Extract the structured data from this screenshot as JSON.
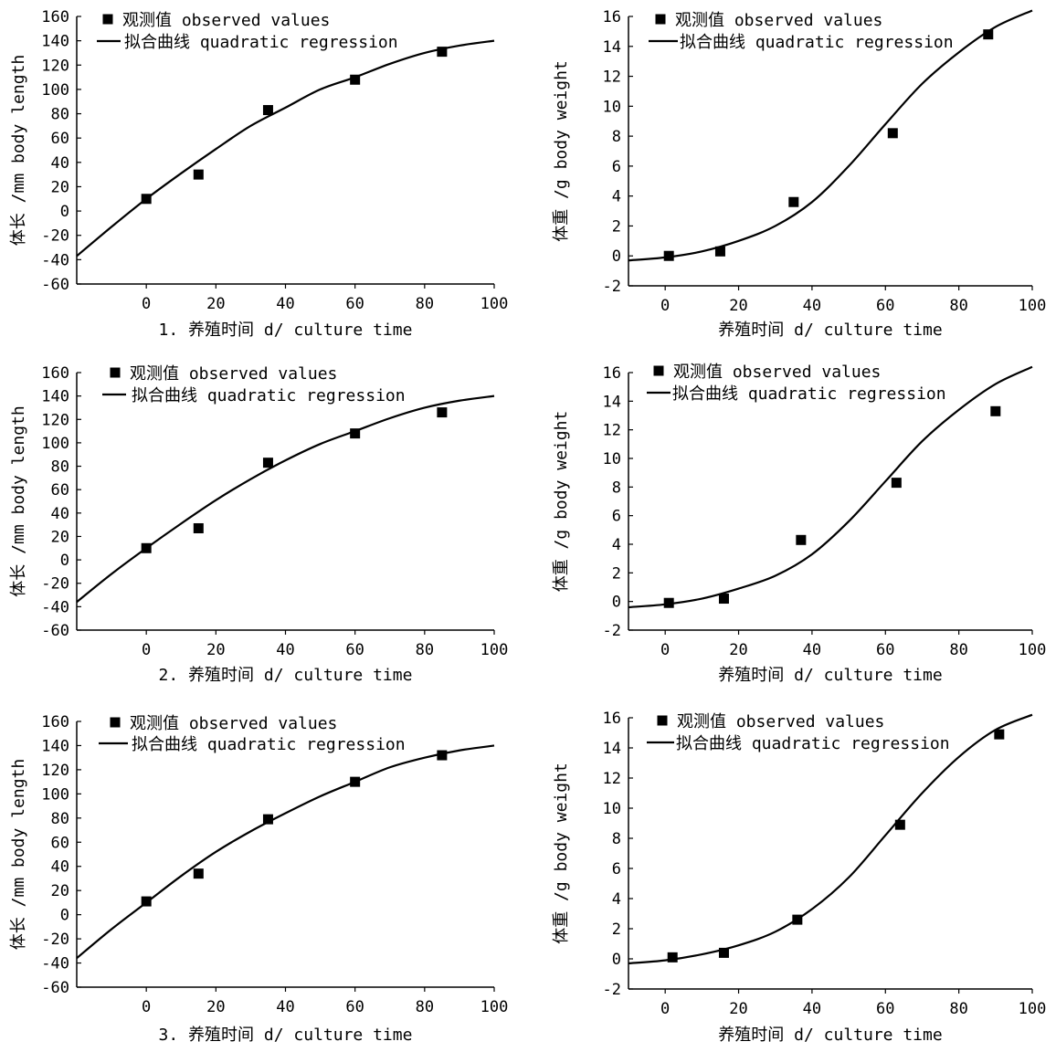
{
  "chart_data": [
    {
      "type": "scatter",
      "xlabel": "1. 养殖时间 d/ culture time",
      "ylabel": "体长 /mm body length",
      "xlim": [
        -20,
        100
      ],
      "ylim": [
        -60,
        160
      ],
      "xticks": [
        0,
        20,
        40,
        60,
        80,
        100
      ],
      "yticks": [
        -60,
        -40,
        -20,
        0,
        20,
        40,
        60,
        80,
        100,
        120,
        140,
        160
      ],
      "legend": {
        "position": "top-left",
        "observed": "观测值 observed values",
        "fit": "拟合曲线 quadratic regression"
      },
      "series": [
        {
          "name": "观测值 observed values",
          "kind": "points",
          "x": [
            0,
            15,
            35,
            60,
            85
          ],
          "y": [
            10,
            30,
            83,
            108,
            131
          ]
        },
        {
          "name": "拟合曲线 quadratic regression",
          "kind": "line",
          "x": [
            -20,
            -10,
            0,
            10,
            20,
            30,
            40,
            50,
            60,
            70,
            80,
            90,
            100
          ],
          "y": [
            -37,
            -13,
            10,
            31,
            51,
            70,
            85,
            100,
            110,
            121,
            130,
            136,
            140
          ]
        }
      ]
    },
    {
      "type": "scatter",
      "xlabel": "养殖时间 d/ culture time",
      "ylabel": "体重 /g body weight",
      "xlim": [
        -10,
        100
      ],
      "ylim": [
        -2,
        16
      ],
      "xticks": [
        0,
        20,
        40,
        60,
        80,
        100
      ],
      "yticks": [
        -2,
        0,
        2,
        4,
        6,
        8,
        10,
        12,
        14,
        16
      ],
      "legend": {
        "position": "top-left",
        "observed": "观测值 observed values",
        "fit": "拟合曲线 quadratic regression"
      },
      "series": [
        {
          "name": "观测值 observed values",
          "kind": "points",
          "x": [
            1,
            15,
            35,
            62,
            88
          ],
          "y": [
            0,
            0.3,
            3.6,
            8.2,
            14.8
          ]
        },
        {
          "name": "拟合曲线 quadratic regression",
          "kind": "line",
          "x": [
            -10,
            0,
            10,
            20,
            30,
            40,
            50,
            60,
            70,
            80,
            90,
            100
          ],
          "y": [
            -0.3,
            -0.1,
            0.3,
            1,
            2,
            3.6,
            6,
            8.8,
            11.5,
            13.6,
            15.3,
            16.4
          ]
        }
      ]
    },
    {
      "type": "scatter",
      "xlabel": "2. 养殖时间 d/ culture time",
      "ylabel": "体长 /mm body length",
      "xlim": [
        -20,
        100
      ],
      "ylim": [
        -60,
        160
      ],
      "xticks": [
        0,
        20,
        40,
        60,
        80,
        100
      ],
      "yticks": [
        -60,
        -40,
        -20,
        0,
        20,
        40,
        60,
        80,
        100,
        120,
        140,
        160
      ],
      "legend": {
        "position": "top-left",
        "observed": "观测值 observed values",
        "fit": "拟合曲线 quadratic regression"
      },
      "series": [
        {
          "name": "观测值 observed values",
          "kind": "points",
          "x": [
            0,
            15,
            35,
            60,
            85
          ],
          "y": [
            10,
            27,
            83,
            108,
            126
          ]
        },
        {
          "name": "拟合曲线 quadratic regression",
          "kind": "line",
          "x": [
            -20,
            -10,
            0,
            10,
            20,
            30,
            40,
            50,
            60,
            70,
            80,
            90,
            100
          ],
          "y": [
            -36,
            -12,
            10,
            31,
            51,
            69,
            85,
            99,
            110,
            121,
            130,
            136,
            140
          ]
        }
      ]
    },
    {
      "type": "scatter",
      "xlabel": "养殖时间 d/ culture time",
      "ylabel": "体重 /g body weight",
      "xlim": [
        -10,
        100
      ],
      "ylim": [
        -2,
        16
      ],
      "xticks": [
        0,
        20,
        40,
        60,
        80,
        100
      ],
      "yticks": [
        -2,
        0,
        2,
        4,
        6,
        8,
        10,
        12,
        14,
        16
      ],
      "legend": {
        "position": "top-left",
        "observed": "观测值 observed values",
        "fit": "拟合曲线 quadratic regression"
      },
      "series": [
        {
          "name": "观测值 observed values",
          "kind": "points",
          "x": [
            1,
            16,
            37,
            63,
            90
          ],
          "y": [
            -0.1,
            0.2,
            4.3,
            8.3,
            13.3
          ]
        },
        {
          "name": "拟合曲线 quadratic regression",
          "kind": "line",
          "x": [
            -10,
            0,
            10,
            20,
            30,
            40,
            50,
            60,
            70,
            80,
            90,
            100
          ],
          "y": [
            -0.4,
            -0.2,
            0.2,
            0.9,
            1.8,
            3.3,
            5.6,
            8.4,
            11.2,
            13.4,
            15.2,
            16.4
          ]
        }
      ]
    },
    {
      "type": "scatter",
      "xlabel": "3. 养殖时间 d/ culture time",
      "ylabel": "体长 /mm body length",
      "xlim": [
        -20,
        100
      ],
      "ylim": [
        -60,
        160
      ],
      "xticks": [
        0,
        20,
        40,
        60,
        80,
        100
      ],
      "yticks": [
        -60,
        -40,
        -20,
        0,
        20,
        40,
        60,
        80,
        100,
        120,
        140,
        160
      ],
      "legend": {
        "position": "top-left",
        "observed": "观测值 observed values",
        "fit": "拟合曲线 quadratic regression"
      },
      "series": [
        {
          "name": "观测值 observed values",
          "kind": "points",
          "x": [
            0,
            15,
            35,
            60,
            85
          ],
          "y": [
            11,
            34,
            79,
            110,
            132
          ]
        },
        {
          "name": "拟合曲线 quadratic regression",
          "kind": "line",
          "x": [
            -20,
            -10,
            0,
            10,
            20,
            30,
            40,
            50,
            60,
            70,
            80,
            90,
            100
          ],
          "y": [
            -36,
            -12,
            10,
            32,
            52,
            69,
            84,
            98,
            110,
            122,
            130,
            136,
            140
          ]
        }
      ]
    },
    {
      "type": "scatter",
      "xlabel": "养殖时间 d/ culture time",
      "ylabel": "体重 /g body weight",
      "xlim": [
        -10,
        100
      ],
      "ylim": [
        -2,
        16
      ],
      "xticks": [
        0,
        20,
        40,
        60,
        80,
        100
      ],
      "yticks": [
        -2,
        0,
        2,
        4,
        6,
        8,
        10,
        12,
        14,
        16
      ],
      "legend": {
        "position": "top-left",
        "observed": "观测值 observed values",
        "fit": "拟合曲线 quadratic regression"
      },
      "series": [
        {
          "name": "观测值 observed values",
          "kind": "points",
          "x": [
            2,
            16,
            36,
            64,
            91
          ],
          "y": [
            0.1,
            0.4,
            2.6,
            8.9,
            14.9
          ]
        },
        {
          "name": "拟合曲线 quadratic regression",
          "kind": "line",
          "x": [
            -10,
            0,
            10,
            20,
            30,
            40,
            50,
            60,
            70,
            80,
            90,
            100
          ],
          "y": [
            -0.3,
            -0.1,
            0.3,
            0.9,
            1.8,
            3.3,
            5.4,
            8.2,
            11,
            13.4,
            15.2,
            16.2
          ]
        }
      ]
    }
  ]
}
